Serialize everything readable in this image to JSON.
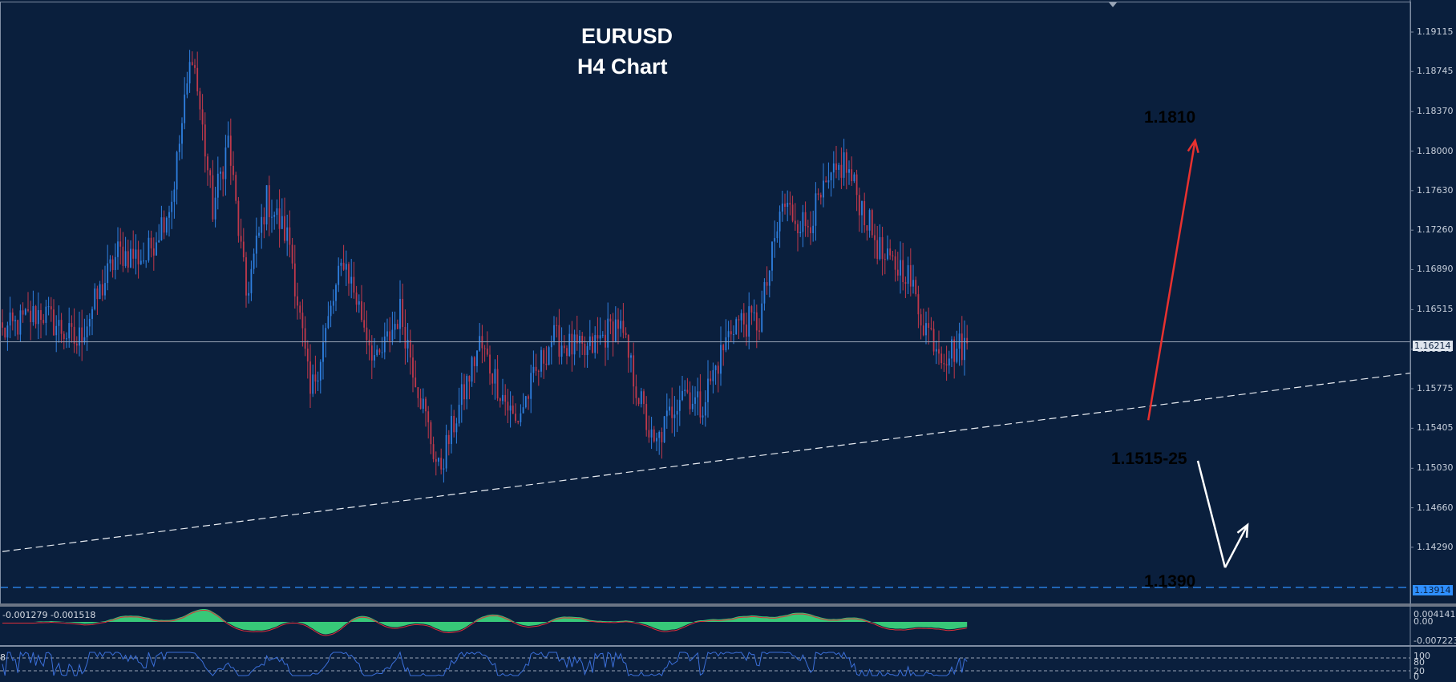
{
  "chart_data": {
    "type": "candlestick",
    "symbol": "EURUSD",
    "title": "EURUSD",
    "subtitle": "H4 Chart",
    "ylim": [
      1.1354,
      1.193
    ],
    "y_ticks": [
      "1.19115",
      "1.18745",
      "1.18370",
      "1.18000",
      "1.17630",
      "1.17260",
      "1.16890",
      "1.16515",
      "1.16145",
      "1.15775",
      "1.15405",
      "1.15030",
      "1.14660",
      "1.14290"
    ],
    "current_price": {
      "label": "1.16214",
      "value": 1.16214
    },
    "bottom_line": {
      "label": "1.13914",
      "value": 1.13914
    },
    "anchors": [
      {
        "bar": 0,
        "price": 1.163
      },
      {
        "bar": 15,
        "price": 1.165
      },
      {
        "bar": 29,
        "price": 1.162
      },
      {
        "bar": 45,
        "price": 1.1705
      },
      {
        "bar": 56,
        "price": 1.17
      },
      {
        "bar": 66,
        "price": 1.1755
      },
      {
        "bar": 74,
        "price": 1.1895
      },
      {
        "bar": 82,
        "price": 1.1745
      },
      {
        "bar": 88,
        "price": 1.181
      },
      {
        "bar": 95,
        "price": 1.1665
      },
      {
        "bar": 103,
        "price": 1.1755
      },
      {
        "bar": 112,
        "price": 1.1715
      },
      {
        "bar": 120,
        "price": 1.157
      },
      {
        "bar": 133,
        "price": 1.17
      },
      {
        "bar": 146,
        "price": 1.16
      },
      {
        "bar": 155,
        "price": 1.165
      },
      {
        "bar": 170,
        "price": 1.15
      },
      {
        "bar": 186,
        "price": 1.162
      },
      {
        "bar": 200,
        "price": 1.1545
      },
      {
        "bar": 214,
        "price": 1.1625
      },
      {
        "bar": 227,
        "price": 1.161
      },
      {
        "bar": 240,
        "price": 1.164
      },
      {
        "bar": 254,
        "price": 1.152
      },
      {
        "bar": 265,
        "price": 1.158
      },
      {
        "bar": 272,
        "price": 1.156
      },
      {
        "bar": 285,
        "price": 1.164
      },
      {
        "bar": 295,
        "price": 1.164
      },
      {
        "bar": 304,
        "price": 1.175
      },
      {
        "bar": 313,
        "price": 1.173
      },
      {
        "bar": 328,
        "price": 1.179
      },
      {
        "bar": 338,
        "price": 1.173
      },
      {
        "bar": 344,
        "price": 1.1695
      },
      {
        "bar": 352,
        "price": 1.169
      },
      {
        "bar": 359,
        "price": 1.164
      },
      {
        "bar": 367,
        "price": 1.161
      },
      {
        "bar": 376,
        "price": 1.162
      }
    ],
    "trendline": {
      "points": [
        [
          0,
          1.1425
        ],
        [
          371,
          1.1538
        ]
      ],
      "extend_right": true,
      "style": "dashed"
    },
    "horizontal_line": {
      "price": 1.13914,
      "style": "dashed",
      "color": "#2f8fff"
    },
    "annotations": [
      {
        "text": "1.1810",
        "color": "#ffffff"
      },
      {
        "text": "1.1515-25",
        "color": "#ffffff"
      },
      {
        "text": "1.1390",
        "color": "#2f8fff"
      }
    ],
    "arrows": [
      {
        "color": "#e8312f",
        "from": [
          371,
          1.1548
        ],
        "to": [
          388,
          1.181
        ]
      },
      {
        "color": "#ffffff",
        "from": [
          396,
          1.151
        ],
        "to": [
          405,
          1.141
        ],
        "second_leg_to": [
          412,
          1.145
        ]
      }
    ],
    "grid": false,
    "colors": {
      "background": "#0a1f3d",
      "bull": "#2f7fe0",
      "bear": "#c0394b",
      "macd_fill": "#37c878",
      "signal": "#e0303a",
      "stoch": "#3b6fd9"
    }
  },
  "indicators": {
    "macd": {
      "label": "-0.001279 -0.001518",
      "ticks": [
        "0.004141",
        "0.00",
        "-0.007223"
      ]
    },
    "stochastic": {
      "label": "8",
      "ticks": [
        "100",
        "80",
        "20",
        "0"
      ]
    }
  }
}
